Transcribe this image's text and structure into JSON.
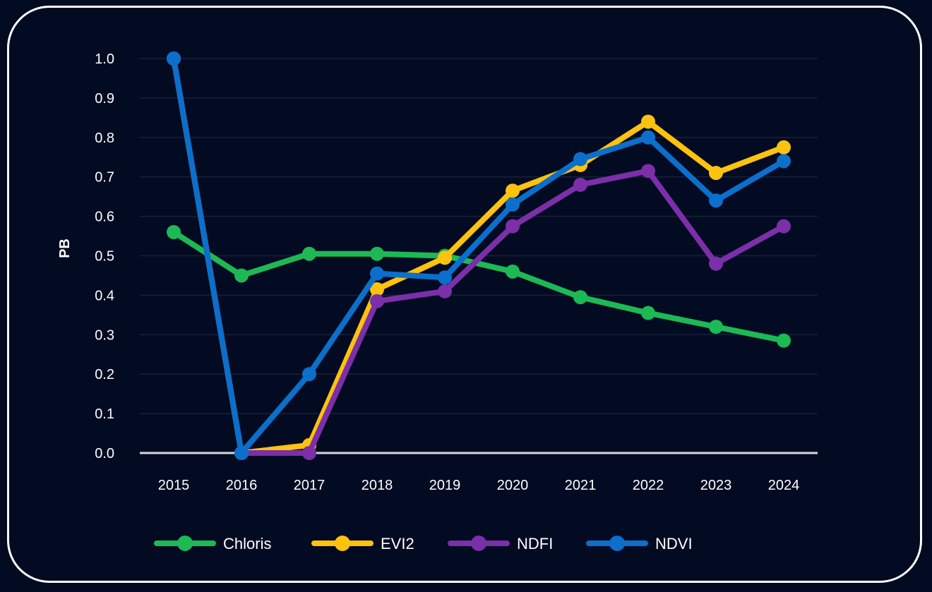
{
  "chart_data": {
    "type": "line",
    "title": "",
    "xlabel": "",
    "ylabel": "PB",
    "x": [
      "2015",
      "2016",
      "2017",
      "2018",
      "2019",
      "2020",
      "2021",
      "2022",
      "2023",
      "2024"
    ],
    "ylim": [
      0,
      1.0
    ],
    "yticks": [
      "0.0",
      "0.1",
      "0.2",
      "0.3",
      "0.4",
      "0.5",
      "0.6",
      "0.7",
      "0.8",
      "0.9",
      "1.0"
    ],
    "grid": true,
    "legend_position": "bottom",
    "series": [
      {
        "name": "Chloris",
        "color": "#1db954",
        "values": [
          0.56,
          0.45,
          0.505,
          0.505,
          0.5,
          0.46,
          0.395,
          0.355,
          0.32,
          0.285
        ]
      },
      {
        "name": "EVI2",
        "color": "#ffc20e",
        "values": [
          1.0,
          0.0,
          0.02,
          0.415,
          0.495,
          0.665,
          0.73,
          0.84,
          0.71,
          0.775
        ]
      },
      {
        "name": "NDFI",
        "color": "#7b2fa8",
        "values": [
          1.0,
          0.0,
          0.0,
          0.385,
          0.41,
          0.575,
          0.68,
          0.715,
          0.48,
          0.575
        ]
      },
      {
        "name": "NDVI",
        "color": "#0b6fcb",
        "values": [
          1.0,
          0.0,
          0.2,
          0.455,
          0.445,
          0.63,
          0.745,
          0.8,
          0.64,
          0.74
        ]
      }
    ]
  }
}
